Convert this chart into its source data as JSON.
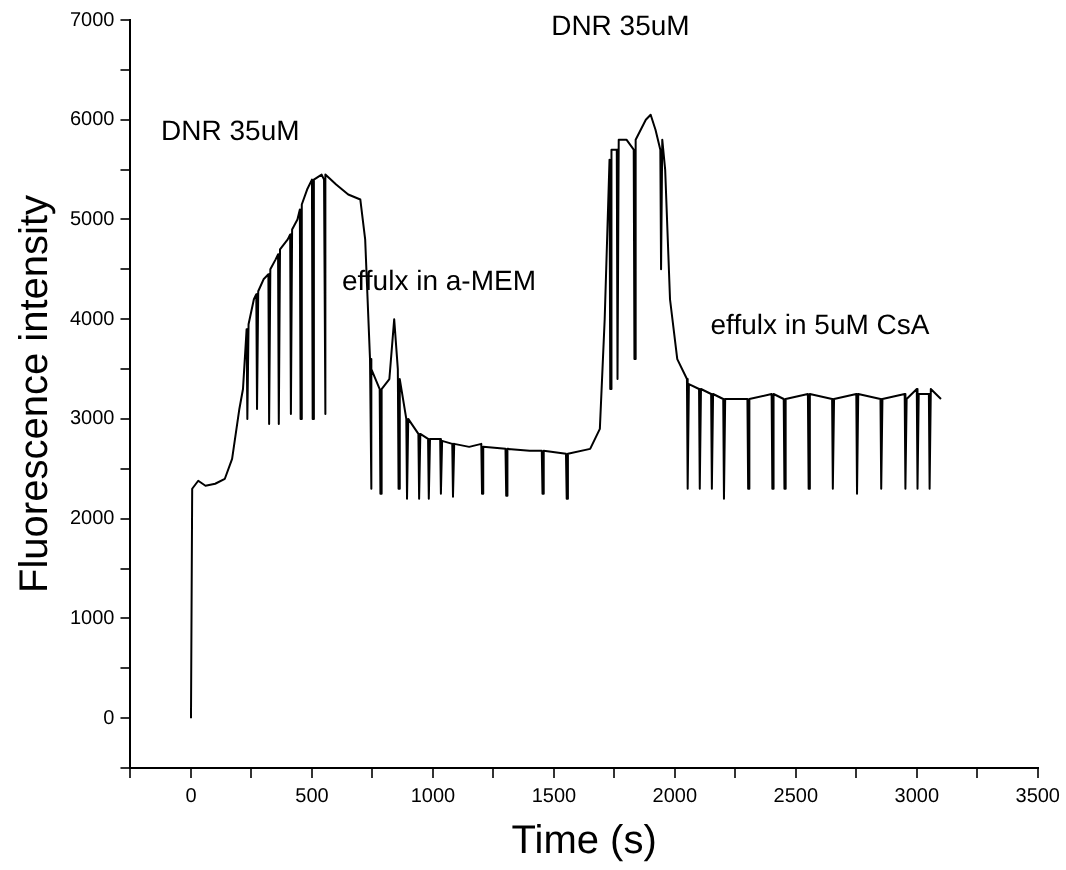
{
  "chart_data": {
    "type": "line",
    "xlabel": "Time (s)",
    "ylabel": "Fluorescence intensity",
    "xlim": [
      -250,
      3500
    ],
    "ylim": [
      -500,
      7000
    ],
    "xticks": [
      {
        "value": -250,
        "label": null
      },
      0,
      {
        "value": 250,
        "label": null
      },
      500,
      {
        "value": 750,
        "label": null
      },
      1000,
      {
        "value": 1250,
        "label": null
      },
      1500,
      {
        "value": 1750,
        "label": null
      },
      2000,
      {
        "value": 2250,
        "label": null
      },
      2500,
      {
        "value": 2750,
        "label": null
      },
      3000,
      {
        "value": 3250,
        "label": null
      },
      3500
    ],
    "yticks": [
      {
        "value": -500,
        "label": null
      },
      0,
      {
        "value": 500,
        "label": null
      },
      1000,
      {
        "value": 1500,
        "label": null
      },
      2000,
      {
        "value": 2500,
        "label": null
      },
      3000,
      {
        "value": 3500,
        "label": null
      },
      4000,
      {
        "value": 4500,
        "label": null
      },
      5000,
      {
        "value": 5500,
        "label": null
      },
      6000,
      {
        "value": 6500,
        "label": null
      },
      7000
    ],
    "grid": false,
    "legend": false,
    "marker": "none",
    "line_style": "solid",
    "annotations": [
      "DNR 35uM",
      "effulx in a-MEM",
      "DNR 35uM",
      "effulx in 5uM CsA"
    ],
    "series": [
      {
        "color": "#000000",
        "x": [
          0,
          5,
          30,
          60,
          100,
          140,
          170,
          200,
          215,
          230,
          233,
          238,
          260,
          270,
          273,
          278,
          300,
          320,
          323,
          328,
          350,
          360,
          363,
          368,
          400,
          410,
          413,
          418,
          440,
          450,
          453,
          458,
          480,
          500,
          503,
          508,
          540,
          550,
          553,
          558,
          600,
          650,
          700,
          720,
          740,
          743,
          748,
          780,
          783,
          788,
          820,
          840,
          855,
          858,
          863,
          890,
          893,
          898,
          940,
          943,
          948,
          980,
          983,
          988,
          1030,
          1033,
          1038,
          1080,
          1083,
          1088,
          1150,
          1200,
          1203,
          1208,
          1300,
          1303,
          1308,
          1400,
          1450,
          1453,
          1458,
          1550,
          1553,
          1558,
          1650,
          1690,
          1710,
          1730,
          1733,
          1738,
          1760,
          1763,
          1768,
          1800,
          1830,
          1833,
          1838,
          1880,
          1900,
          1920,
          1940,
          1943,
          1948,
          1960,
          1980,
          2010,
          2050,
          2053,
          2058,
          2100,
          2103,
          2108,
          2150,
          2153,
          2158,
          2200,
          2203,
          2208,
          2300,
          2303,
          2308,
          2400,
          2403,
          2408,
          2450,
          2453,
          2458,
          2550,
          2553,
          2558,
          2650,
          2653,
          2658,
          2750,
          2753,
          2758,
          2850,
          2853,
          2858,
          2950,
          2953,
          2958,
          3000,
          3003,
          3008,
          3050,
          3053,
          3058,
          3100
        ],
        "values": [
          0,
          2300,
          2380,
          2330,
          2350,
          2400,
          2600,
          3100,
          3300,
          3900,
          3000,
          3950,
          4200,
          4250,
          3100,
          4280,
          4400,
          4450,
          2950,
          4500,
          4600,
          4650,
          2950,
          4700,
          4800,
          4850,
          3050,
          4900,
          5000,
          5100,
          3000,
          5150,
          5300,
          5400,
          3000,
          5400,
          5450,
          5400,
          3050,
          5450,
          5350,
          5250,
          5200,
          4800,
          3600,
          2300,
          3500,
          3300,
          2250,
          3300,
          3400,
          4000,
          3500,
          2300,
          3400,
          3000,
          2200,
          3000,
          2850,
          2200,
          2850,
          2800,
          2200,
          2800,
          2800,
          2250,
          2780,
          2750,
          2220,
          2750,
          2720,
          2750,
          2250,
          2720,
          2700,
          2230,
          2700,
          2680,
          2680,
          2250,
          2680,
          2650,
          2200,
          2650,
          2700,
          2900,
          4000,
          5600,
          3300,
          5700,
          5700,
          3400,
          5800,
          5800,
          5700,
          3600,
          5800,
          6000,
          6050,
          5900,
          5700,
          4500,
          5800,
          5500,
          4200,
          3600,
          3400,
          2300,
          3350,
          3300,
          2300,
          3300,
          3250,
          2300,
          3250,
          3200,
          2200,
          3200,
          3200,
          2300,
          3200,
          3250,
          2300,
          3250,
          3200,
          2300,
          3200,
          3250,
          2300,
          3250,
          3200,
          2300,
          3200,
          3250,
          2250,
          3250,
          3200,
          2300,
          3200,
          3250,
          2300,
          3200,
          3300,
          2300,
          3250,
          3250,
          2300,
          3300,
          3200
        ]
      }
    ]
  }
}
